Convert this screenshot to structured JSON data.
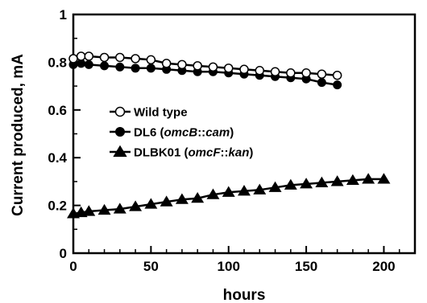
{
  "chart_data": {
    "type": "line",
    "title": "",
    "xlabel": "hours",
    "ylabel": "Current produced, mA",
    "xlim": [
      0,
      220
    ],
    "ylim": [
      0,
      1
    ],
    "xticks": [
      0,
      50,
      100,
      150,
      200
    ],
    "yticks": [
      0,
      0.2,
      0.4,
      0.6,
      0.8,
      1
    ],
    "xtick_labels": [
      "0",
      "50",
      "100",
      "150",
      "200"
    ],
    "ytick_labels": [
      "0",
      "0.2",
      "0.4",
      "0.6",
      "0.8",
      "1"
    ],
    "grid": false,
    "legend_position": "center-left",
    "series": [
      {
        "name": "Wild type",
        "marker": "open-circle",
        "color": "#000000",
        "x": [
          0,
          5,
          10,
          20,
          30,
          40,
          50,
          60,
          70,
          80,
          90,
          100,
          110,
          120,
          130,
          140,
          150,
          160,
          170
        ],
        "y": [
          0.815,
          0.825,
          0.825,
          0.82,
          0.82,
          0.815,
          0.81,
          0.795,
          0.79,
          0.785,
          0.78,
          0.775,
          0.77,
          0.765,
          0.76,
          0.755,
          0.755,
          0.75,
          0.745
        ]
      },
      {
        "name": "DL6 (omcB::cam)",
        "name_parts": [
          {
            "text": "DL6 (",
            "italic": false
          },
          {
            "text": "omcB",
            "italic": true
          },
          {
            "text": "::",
            "italic": false
          },
          {
            "text": "cam",
            "italic": true
          },
          {
            "text": ")",
            "italic": false
          }
        ],
        "marker": "filled-circle",
        "color": "#000000",
        "x": [
          0,
          5,
          10,
          20,
          30,
          40,
          50,
          60,
          70,
          80,
          90,
          100,
          110,
          120,
          130,
          140,
          150,
          160,
          170
        ],
        "y": [
          0.79,
          0.795,
          0.79,
          0.785,
          0.78,
          0.775,
          0.775,
          0.77,
          0.765,
          0.76,
          0.76,
          0.755,
          0.75,
          0.745,
          0.74,
          0.735,
          0.73,
          0.715,
          0.705
        ]
      },
      {
        "name": "DLBK01 (omcF::kan)",
        "name_parts": [
          {
            "text": "DLBK01 (",
            "italic": false
          },
          {
            "text": "omcF",
            "italic": true
          },
          {
            "text": "::",
            "italic": false
          },
          {
            "text": "kan",
            "italic": true
          },
          {
            "text": ")",
            "italic": false
          }
        ],
        "marker": "filled-triangle",
        "color": "#000000",
        "x": [
          0,
          5,
          10,
          20,
          30,
          40,
          50,
          60,
          70,
          80,
          90,
          100,
          110,
          120,
          130,
          140,
          150,
          160,
          170,
          180,
          190,
          200
        ],
        "y": [
          0.165,
          0.17,
          0.175,
          0.18,
          0.185,
          0.195,
          0.205,
          0.215,
          0.225,
          0.23,
          0.245,
          0.255,
          0.26,
          0.265,
          0.275,
          0.285,
          0.29,
          0.295,
          0.3,
          0.305,
          0.31,
          0.31
        ]
      }
    ]
  }
}
